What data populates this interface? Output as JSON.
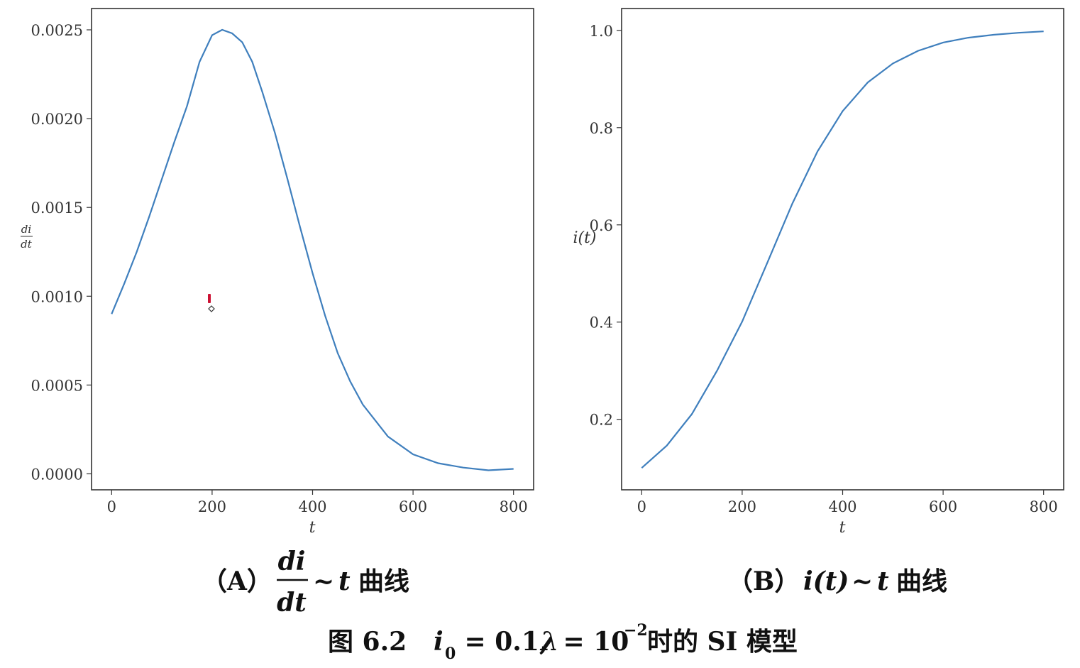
{
  "chart_data": [
    {
      "type": "line",
      "xlabel": "t",
      "ylabel": "di / dt",
      "xlim": [
        -40,
        840
      ],
      "ylim": [
        -9e-05,
        0.00262
      ],
      "xticks": [
        "0",
        "200",
        "400",
        "600",
        "800"
      ],
      "yticks": [
        "0.0000",
        "0.0005",
        "0.0010",
        "0.0015",
        "0.0020",
        "0.0025"
      ],
      "grid": false,
      "series": [
        {
          "color": "#3f7fbd",
          "x": [
            0,
            25,
            50,
            75,
            100,
            125,
            150,
            175,
            200,
            220,
            240,
            260,
            280,
            300,
            325,
            350,
            375,
            400,
            425,
            450,
            475,
            500,
            550,
            600,
            650,
            700,
            750,
            800
          ],
          "y": [
            0.0009,
            0.00107,
            0.00125,
            0.00145,
            0.00166,
            0.00187,
            0.00207,
            0.00232,
            0.00247,
            0.0025,
            0.00248,
            0.00243,
            0.00232,
            0.00215,
            0.00192,
            0.00166,
            0.00139,
            0.00113,
            0.00089,
            0.00068,
            0.00052,
            0.00039,
            0.00021,
            0.00011,
            6e-05,
            3.5e-05,
            2e-05,
            2.8e-05
          ]
        }
      ],
      "caption": {
        "label": "（A）",
        "num": "di",
        "den": "dt",
        "tail": "~",
        "var": "t",
        "text": "曲线"
      }
    },
    {
      "type": "line",
      "xlabel": "t",
      "ylabel": "i(t)",
      "xlim": [
        -40,
        840
      ],
      "ylim": [
        0.055,
        1.045
      ],
      "xticks": [
        "0",
        "200",
        "400",
        "600",
        "800"
      ],
      "yticks": [
        "0.2",
        "0.4",
        "0.6",
        "0.8",
        "1.0"
      ],
      "grid": false,
      "series": [
        {
          "color": "#3f7fbd",
          "x": [
            0,
            50,
            100,
            150,
            200,
            250,
            300,
            350,
            400,
            450,
            500,
            550,
            600,
            650,
            700,
            750,
            800
          ],
          "y": [
            0.1,
            0.146,
            0.211,
            0.3,
            0.401,
            0.522,
            0.644,
            0.751,
            0.834,
            0.893,
            0.932,
            0.958,
            0.975,
            0.985,
            0.991,
            0.995,
            0.998
          ]
        }
      ],
      "caption": {
        "label": "（B）",
        "func": "i(t)",
        "tail": "~",
        "var": "t",
        "text": "曲线"
      }
    }
  ],
  "figure_caption": {
    "prefix": "图 6.2",
    "expr_i": "i",
    "expr_sub": "0",
    "expr_mid": " = 0.1,",
    "expr_lambda": "λ",
    "expr_eq": " = 10",
    "expr_sup": "−2",
    "suffix": "时的 SI 模型"
  },
  "marker_color": "#cc1133"
}
